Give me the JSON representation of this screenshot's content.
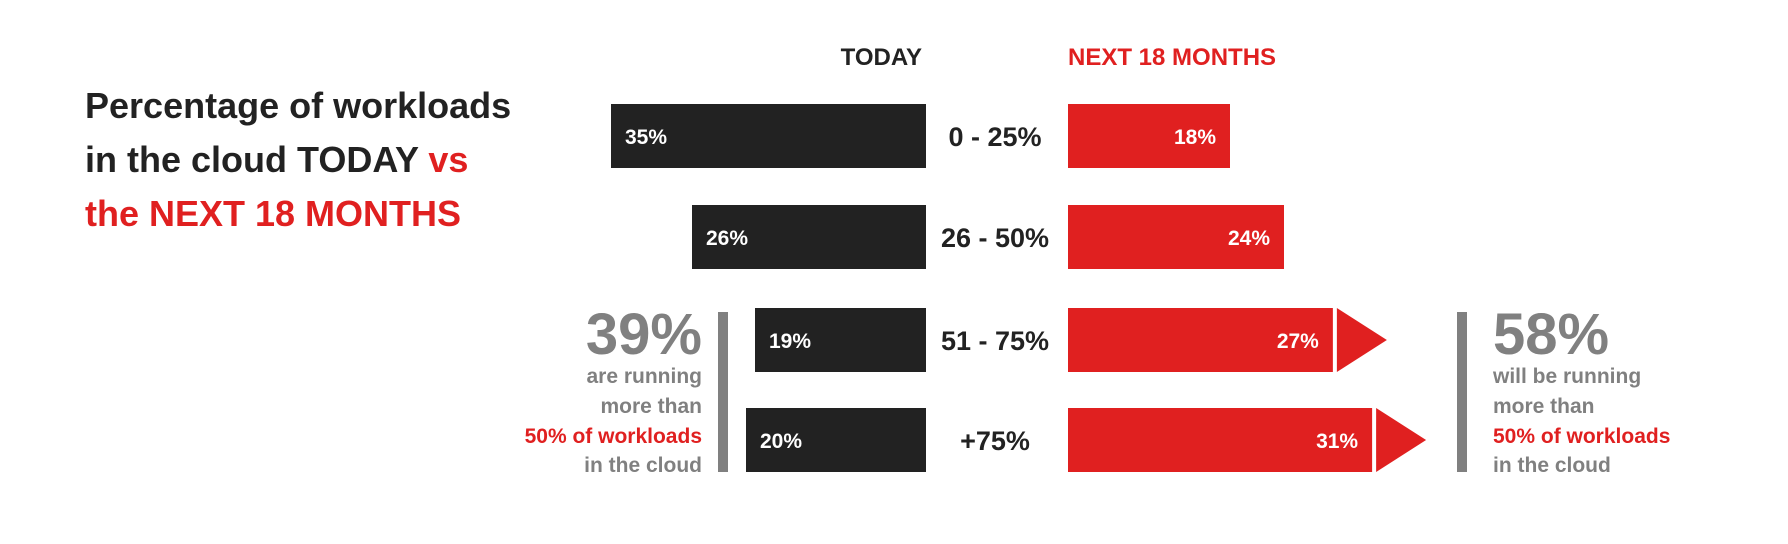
{
  "chart_data": {
    "type": "bar",
    "title": {
      "line1": "Percentage of workloads",
      "line2a": "in the cloud TODAY ",
      "line2b": "vs",
      "line3": "the NEXT 18 MONTHS"
    },
    "headers": {
      "today": "TODAY",
      "next": "NEXT 18 MONTHS"
    },
    "categories": [
      "0 - 25%",
      "26 - 50%",
      "51 - 75%",
      "+75%"
    ],
    "series": [
      {
        "name": "TODAY",
        "values": [
          35,
          26,
          19,
          20
        ],
        "labels": [
          "35%",
          "26%",
          "19%",
          "20%"
        ],
        "color": "#222222"
      },
      {
        "name": "NEXT 18 MONTHS",
        "values": [
          18,
          24,
          27,
          31
        ],
        "labels": [
          "18%",
          "24%",
          "27%",
          "31%"
        ],
        "color": "#e02020"
      }
    ],
    "callouts": {
      "left": {
        "value": "39%",
        "line1": "are running",
        "line2": "more than",
        "line3": "50% of workloads",
        "line4": "in the cloud"
      },
      "right": {
        "value": "58%",
        "line1": "will be running",
        "line2": "more than",
        "line3": "50% of workloads",
        "line4": "in the cloud"
      }
    }
  },
  "colors": {
    "dark": "#222222",
    "red": "#e02020",
    "gray": "#808080",
    "white": "#ffffff"
  }
}
